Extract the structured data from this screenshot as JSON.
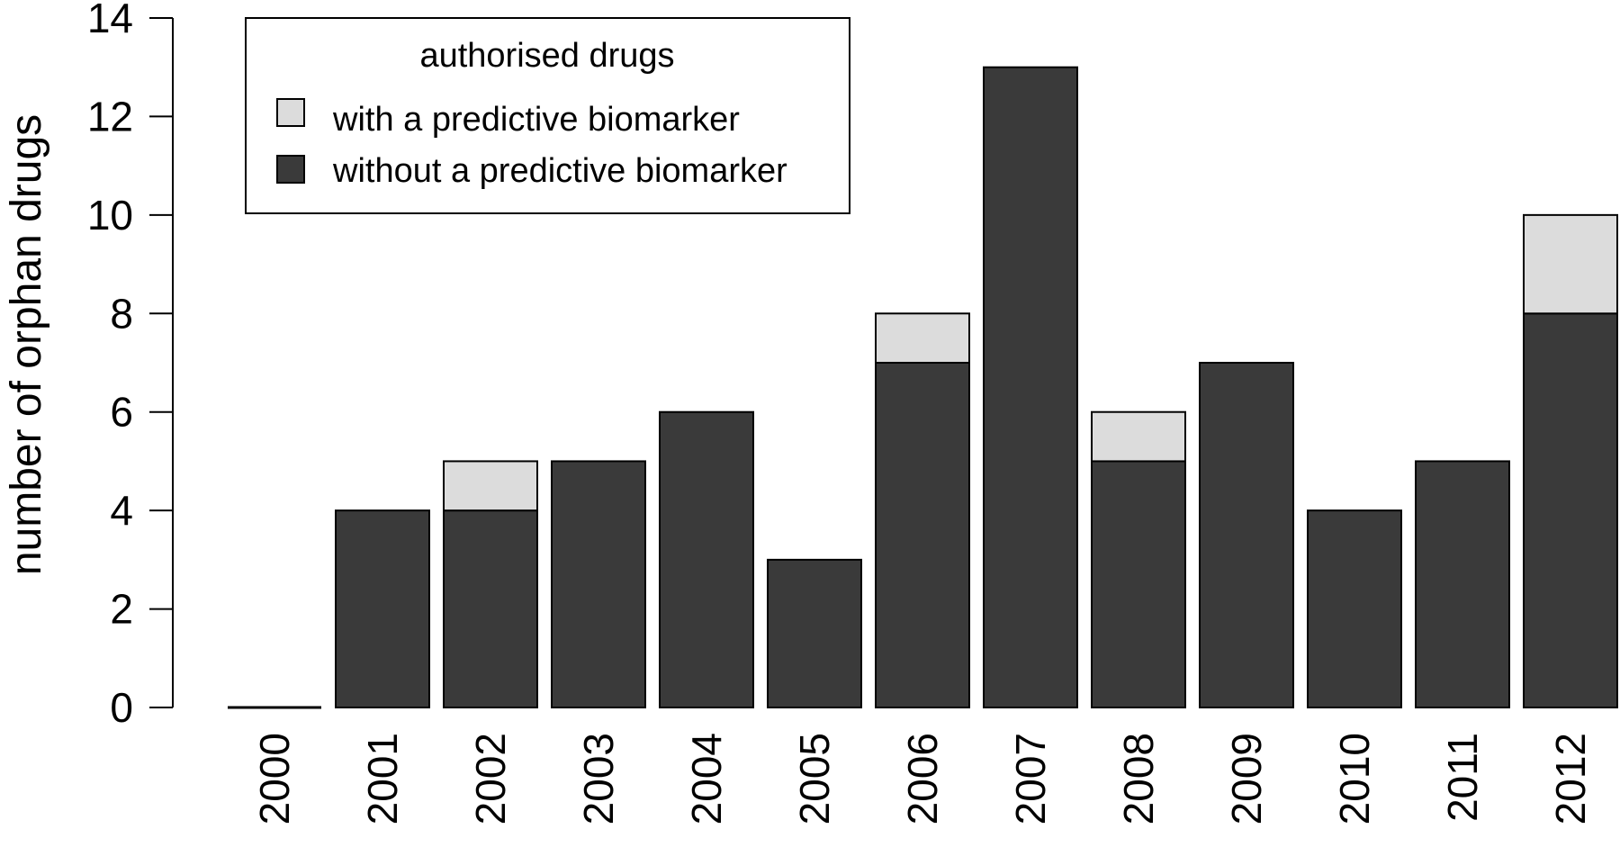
{
  "chart_data": {
    "type": "bar",
    "stacked": true,
    "categories": [
      "2000",
      "2001",
      "2002",
      "2003",
      "2004",
      "2005",
      "2006",
      "2007",
      "2008",
      "2009",
      "2010",
      "2011",
      "2012"
    ],
    "series": [
      {
        "name": "without a predictive biomarker",
        "color": "#3a3a3a",
        "values": [
          0,
          4,
          4,
          5,
          6,
          3,
          7,
          13,
          5,
          7,
          4,
          5,
          8
        ]
      },
      {
        "name": "with a predictive biomarker",
        "color": "#dcdcdc",
        "values": [
          0,
          0,
          1,
          0,
          0,
          0,
          1,
          0,
          1,
          0,
          0,
          0,
          2
        ]
      }
    ],
    "ylabel": "number of orphan drugs",
    "xlabel": "",
    "ylim": [
      0,
      14
    ],
    "yticks": [
      0,
      2,
      4,
      6,
      8,
      10,
      12,
      14
    ],
    "legend": {
      "title": "authorised drugs",
      "position": "top-left",
      "entries": [
        {
          "label": "with a predictive biomarker",
          "color": "#dcdcdc"
        },
        {
          "label": "without a predictive biomarker",
          "color": "#3a3a3a"
        }
      ]
    },
    "grid": false
  }
}
